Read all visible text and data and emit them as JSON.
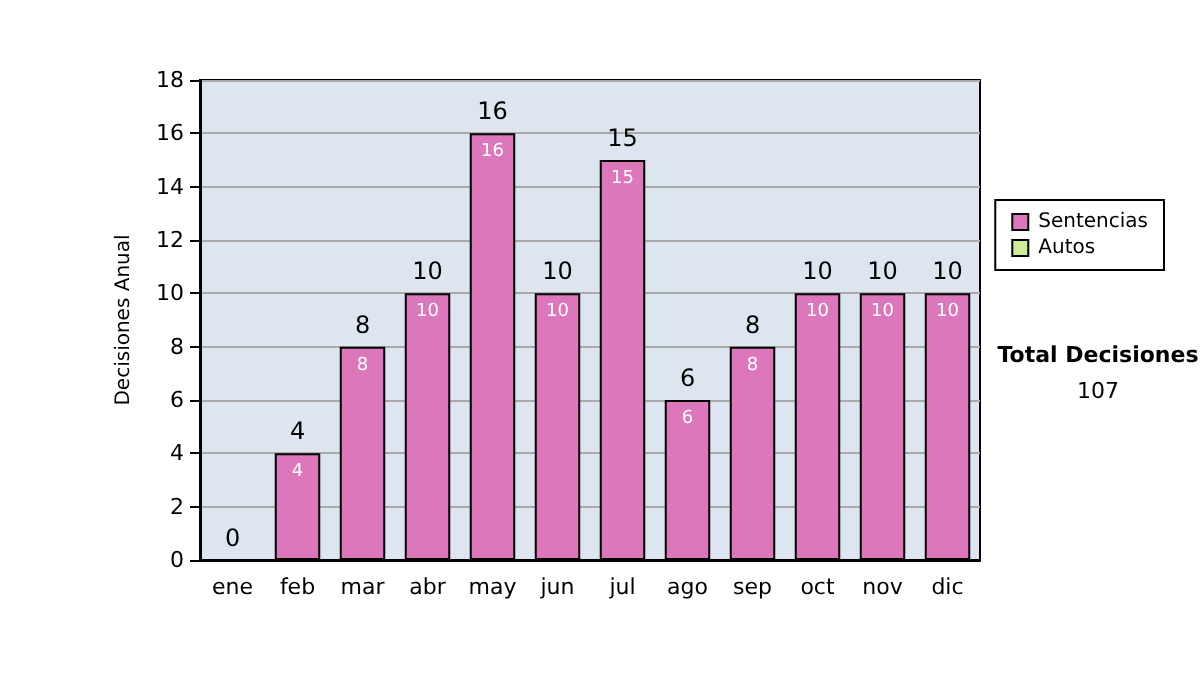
{
  "chart_data": {
    "type": "bar",
    "stacked": true,
    "ylabel": "Decisiones Anual",
    "categories": [
      "ene",
      "feb",
      "mar",
      "abr",
      "may",
      "jun",
      "jul",
      "ago",
      "sep",
      "oct",
      "nov",
      "dic"
    ],
    "series": [
      {
        "name": "Sentencias",
        "color": "#dd77bb",
        "values": [
          0,
          4,
          8,
          10,
          16,
          10,
          15,
          6,
          8,
          10,
          10,
          10
        ],
        "value_labels": [
          null,
          "4",
          "8",
          "10",
          "16",
          "10",
          "15",
          "6",
          "8",
          "10",
          "10",
          "10"
        ]
      },
      {
        "name": "Autos",
        "color": "#ccee99",
        "values": [
          0,
          0,
          0,
          0,
          0,
          0,
          0,
          0,
          0,
          0,
          0,
          0
        ]
      }
    ],
    "totals": [
      "0",
      "4",
      "8",
      "10",
      "16",
      "10",
      "15",
      "6",
      "8",
      "10",
      "10",
      "10"
    ],
    "ylim": [
      0,
      18
    ],
    "yticks": [
      0,
      2,
      4,
      6,
      8,
      10,
      12,
      14,
      16,
      18
    ],
    "grid": "y",
    "legend": "right",
    "annotations": [
      "Total Decisiones",
      "107"
    ]
  }
}
